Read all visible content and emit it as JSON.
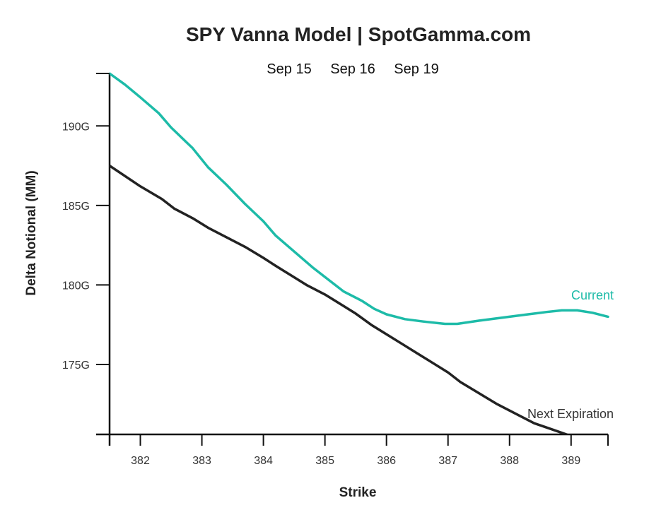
{
  "colors": {
    "current": "#1dbba8",
    "next": "#222222",
    "axis": "#111111"
  },
  "chart_data": {
    "type": "line",
    "title": "SPY Vanna Model | SpotGamma.com",
    "xlabel": "Strike",
    "ylabel": "Delta Notional (MM)",
    "tabs": [
      "Sep 15",
      "Sep 16",
      "Sep 19"
    ],
    "xlim": [
      381.5,
      389.6
    ],
    "ylim": [
      170.6,
      193.3
    ],
    "x_ticks": [
      382,
      383,
      384,
      385,
      386,
      387,
      388,
      389
    ],
    "x_tick_labels": [
      "382",
      "383",
      "384",
      "385",
      "386",
      "387",
      "388",
      "389"
    ],
    "y_ticks": [
      175,
      180,
      185,
      190
    ],
    "y_tick_labels": [
      "175G",
      "180G",
      "185G",
      "190G"
    ],
    "grid": false,
    "series": [
      {
        "name": "Current",
        "x": [
          381.5,
          381.75,
          382.0,
          382.3,
          382.5,
          382.85,
          383.1,
          383.4,
          383.7,
          384.0,
          384.2,
          384.5,
          384.8,
          385.0,
          385.3,
          385.6,
          385.8,
          386.0,
          386.3,
          386.6,
          386.95,
          387.15,
          387.5,
          387.9,
          388.3,
          388.6,
          388.85,
          389.1,
          389.35,
          389.6
        ],
        "y": [
          193.3,
          192.6,
          191.8,
          190.8,
          189.9,
          188.6,
          187.4,
          186.3,
          185.1,
          184.0,
          183.1,
          182.1,
          181.1,
          180.5,
          179.6,
          179.0,
          178.5,
          178.15,
          177.85,
          177.7,
          177.55,
          177.55,
          177.75,
          177.95,
          178.15,
          178.3,
          178.4,
          178.4,
          178.25,
          178.0
        ]
      },
      {
        "name": "Next Expiration",
        "x": [
          381.5,
          382.0,
          382.35,
          382.55,
          382.85,
          383.1,
          383.4,
          383.7,
          384.0,
          384.2,
          384.45,
          384.7,
          385.0,
          385.25,
          385.5,
          385.75,
          386.0,
          386.25,
          386.5,
          386.75,
          387.0,
          387.2,
          387.5,
          387.8,
          388.1,
          388.4,
          388.7,
          389.0,
          389.3,
          389.6
        ],
        "y": [
          187.5,
          186.2,
          185.4,
          184.8,
          184.2,
          183.6,
          183.0,
          182.4,
          181.7,
          181.2,
          180.6,
          180.0,
          179.4,
          178.8,
          178.2,
          177.5,
          176.9,
          176.3,
          175.7,
          175.1,
          174.5,
          173.9,
          173.2,
          172.5,
          171.9,
          171.3,
          170.9,
          170.5,
          170.1,
          169.7
        ]
      }
    ]
  }
}
